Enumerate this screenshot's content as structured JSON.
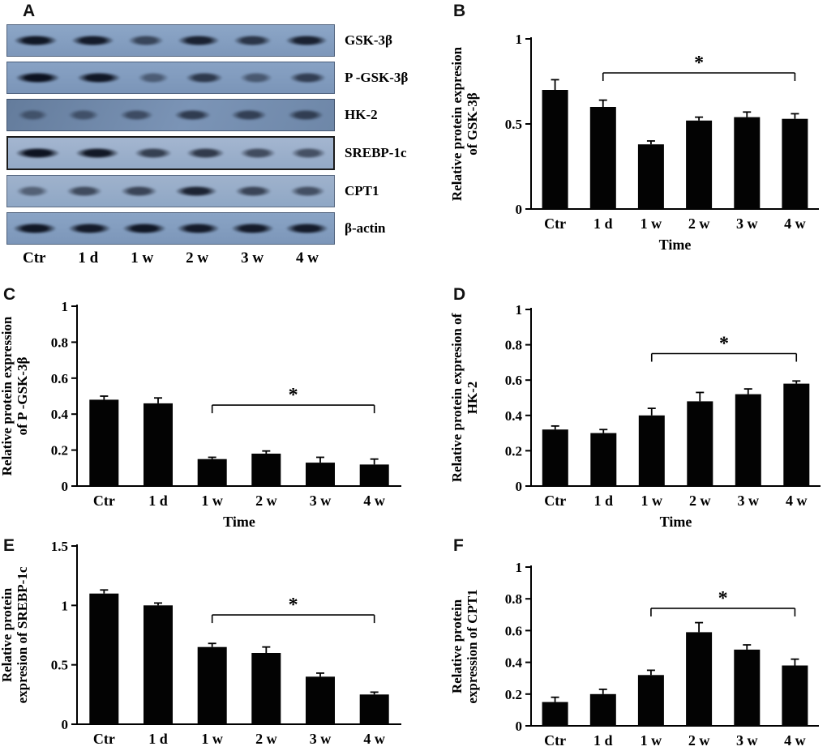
{
  "panel_a": {
    "letter": "A",
    "lane_labels": [
      "Ctr",
      "1 d",
      "1 w",
      "2 w",
      "3 w",
      "4 w"
    ],
    "blots": [
      {
        "label": "GSK-3β",
        "band_intensities": [
          0.9,
          0.85,
          0.45,
          0.8,
          0.6,
          0.8
        ]
      },
      {
        "label": "P -GSK-3β",
        "band_intensities": [
          0.95,
          0.9,
          0.2,
          0.55,
          0.25,
          0.5
        ]
      },
      {
        "label": "HK-2",
        "band_intensities": [
          0.15,
          0.2,
          0.3,
          0.5,
          0.45,
          0.45
        ]
      },
      {
        "label": "SREBP-1c",
        "band_intensities": [
          0.95,
          0.9,
          0.55,
          0.6,
          0.45,
          0.4
        ]
      },
      {
        "label": "CPT1",
        "band_intensities": [
          0.25,
          0.45,
          0.5,
          0.8,
          0.5,
          0.4
        ]
      },
      {
        "label": "β-actin",
        "band_intensities": [
          0.9,
          0.85,
          0.9,
          0.85,
          0.85,
          0.85
        ]
      }
    ]
  },
  "chart_data": [
    {
      "letter": "B",
      "type": "bar",
      "ylabel_lines": [
        "Relative protein expresion",
        "of GSK-3β"
      ],
      "xlabel": "Time",
      "categories": [
        "Ctr",
        "1 d",
        "1 w",
        "2 w",
        "3 w",
        "4 w"
      ],
      "values": [
        0.7,
        0.6,
        0.38,
        0.52,
        0.54,
        0.53
      ],
      "errors": [
        0.06,
        0.04,
        0.02,
        0.02,
        0.03,
        0.03
      ],
      "ylim": [
        0,
        1
      ],
      "yticks": [
        0,
        0.5,
        1
      ],
      "ytick_labels": [
        "0",
        "0.5",
        "1"
      ],
      "significance": {
        "from": "1 d",
        "to": "4 w",
        "at_y": 0.8,
        "label": "*"
      }
    },
    {
      "letter": "C",
      "type": "bar",
      "ylabel_lines": [
        "Relative protein expression",
        "of P -GSK-3β"
      ],
      "xlabel": "Time",
      "categories": [
        "Ctr",
        "1 d",
        "1 w",
        "2 w",
        "3 w",
        "4 w"
      ],
      "values": [
        0.48,
        0.46,
        0.15,
        0.18,
        0.13,
        0.12
      ],
      "errors": [
        0.02,
        0.03,
        0.01,
        0.015,
        0.03,
        0.03
      ],
      "ylim": [
        0,
        1
      ],
      "yticks": [
        0,
        0.2,
        0.4,
        0.6,
        0.8,
        1
      ],
      "ytick_labels": [
        "0",
        "0.2",
        "0.4",
        "0.6",
        "0.8",
        "1"
      ],
      "significance": {
        "from": "1 w",
        "to": "4 w",
        "at_y": 0.45,
        "label": "*"
      }
    },
    {
      "letter": "D",
      "type": "bar",
      "ylabel_lines": [
        "Relative protein expresion of",
        "HK-2"
      ],
      "xlabel": "Time",
      "categories": [
        "Ctr",
        "1 d",
        "1 w",
        "2 w",
        "3 w",
        "4 w"
      ],
      "values": [
        0.32,
        0.3,
        0.4,
        0.48,
        0.52,
        0.58
      ],
      "errors": [
        0.02,
        0.02,
        0.04,
        0.05,
        0.03,
        0.015
      ],
      "ylim": [
        0,
        1
      ],
      "yticks": [
        0,
        0.2,
        0.4,
        0.6,
        0.8,
        1
      ],
      "ytick_labels": [
        "0",
        "0.2",
        "0.4",
        "0.6",
        "0.8",
        "1"
      ],
      "significance": {
        "from": "1 w",
        "to": "4 w",
        "at_y": 0.75,
        "label": "*"
      }
    },
    {
      "letter": "E",
      "type": "bar",
      "ylabel_lines": [
        "Relative protein",
        "expresion of SREBP-1c"
      ],
      "xlabel": "",
      "categories": [
        "Ctr",
        "1 d",
        "1 w",
        "2 w",
        "3 w",
        "4 w"
      ],
      "values": [
        1.1,
        1.0,
        0.65,
        0.6,
        0.4,
        0.25
      ],
      "errors": [
        0.03,
        0.02,
        0.03,
        0.05,
        0.03,
        0.02
      ],
      "ylim": [
        0,
        1.5
      ],
      "yticks": [
        0,
        0.5,
        1,
        1.5
      ],
      "ytick_labels": [
        "0",
        "0.5",
        "1",
        "1.5"
      ],
      "significance": {
        "from": "1 w",
        "to": "4 w",
        "at_y": 0.92,
        "label": "*"
      }
    },
    {
      "letter": "F",
      "type": "bar",
      "ylabel_lines": [
        "Relative protein",
        "expression of CPT1"
      ],
      "xlabel": "",
      "categories": [
        "Ctr",
        "1 d",
        "1 w",
        "2 w",
        "3 w",
        "4 w"
      ],
      "values": [
        0.15,
        0.2,
        0.32,
        0.59,
        0.48,
        0.38
      ],
      "errors": [
        0.03,
        0.03,
        0.03,
        0.06,
        0.03,
        0.04
      ],
      "ylim": [
        0,
        1
      ],
      "yticks": [
        0,
        0.2,
        0.4,
        0.6,
        0.8,
        1
      ],
      "ytick_labels": [
        "0",
        "0.2",
        "0.4",
        "0.6",
        "0.8",
        "1"
      ],
      "significance": {
        "from": "1 w",
        "to": "4 w",
        "at_y": 0.74,
        "label": "*"
      }
    }
  ]
}
